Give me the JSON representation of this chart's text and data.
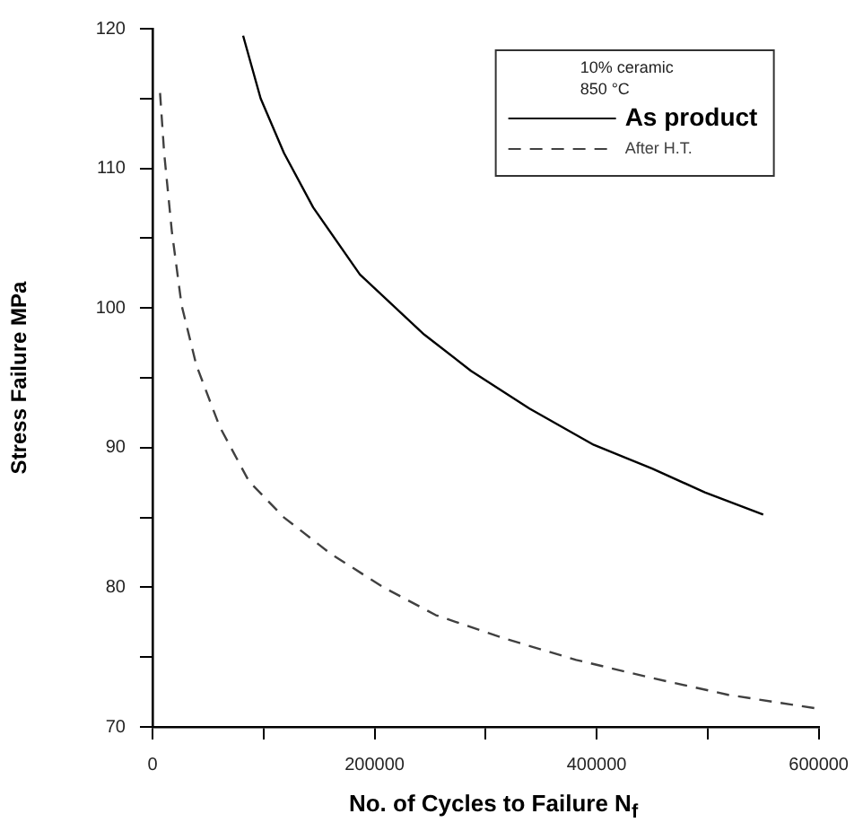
{
  "chart_data": {
    "type": "line",
    "xlabel": "No. of Cycles to Failure N$_{f}$",
    "ylabel": "Stress Failure MPa",
    "legend_title": "10% ceramic\n850 °C",
    "legend": "top right",
    "grid": false,
    "marker": "none",
    "xlim": [
      0,
      600000
    ],
    "xticks": [
      0,
      {
        "value": 100000,
        "label": null
      },
      200000,
      {
        "value": 300000,
        "label": null
      },
      400000,
      {
        "value": 500000,
        "label": null
      },
      600000
    ],
    "ylim": [
      70,
      120
    ],
    "yticks": [
      70,
      {
        "value": 75,
        "label": null
      },
      80,
      {
        "value": 85,
        "label": null
      },
      90,
      {
        "value": 95,
        "label": null
      },
      100,
      {
        "value": 105,
        "label": null
      },
      110,
      {
        "value": 115,
        "label": null
      },
      120
    ],
    "series": [
      {
        "name": "As product",
        "color": "#000000",
        "line_style": "solid",
        "x": [
          81600,
          97400,
          118400,
          144700,
          186800,
          244700,
          286800,
          339500,
          397400,
          450000,
          497400,
          550000
        ],
        "values": [
          119.5,
          115.0,
          111.1,
          107.2,
          102.4,
          98.1,
          95.5,
          92.8,
          90.2,
          88.5,
          86.8,
          85.2
        ]
      },
      {
        "name": "After H.T.",
        "color": "#404040",
        "line_style": "dashed",
        "x": [
          6800,
          10500,
          17400,
          26200,
          39500,
          60500,
          86800,
          118400,
          160500,
          207900,
          255300,
          318400,
          381600,
          450000,
          518400,
          600000
        ],
        "values": [
          115.4,
          111.1,
          105.5,
          100.2,
          95.9,
          91.5,
          87.6,
          85.0,
          82.4,
          80.0,
          78.0,
          76.3,
          74.8,
          73.5,
          72.3,
          71.3
        ]
      }
    ]
  }
}
